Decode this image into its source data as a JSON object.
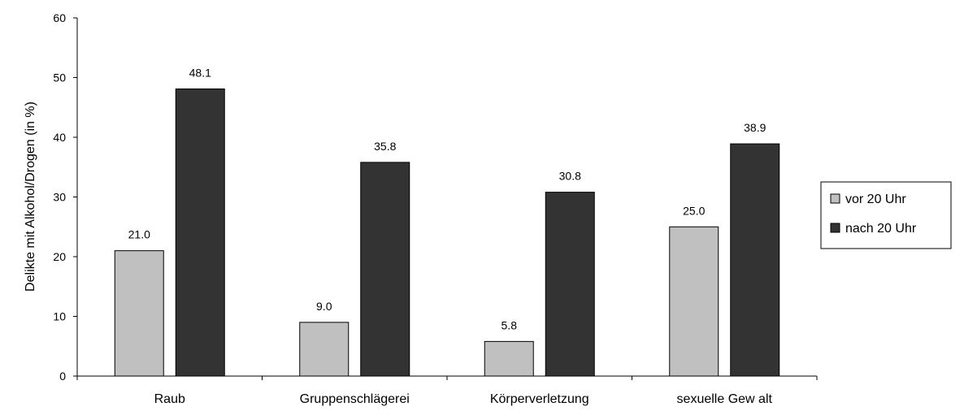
{
  "chart_data": {
    "type": "bar",
    "categories": [
      "Raub",
      "Gruppenschlägerei",
      "Körperverletzung",
      "sexuelle Gew alt"
    ],
    "series": [
      {
        "name": "vor 20 Uhr",
        "values": [
          21.0,
          9.0,
          5.8,
          25.0
        ],
        "color": "#c0c0c0"
      },
      {
        "name": "nach 20 Uhr",
        "values": [
          48.1,
          35.8,
          30.8,
          38.9
        ],
        "color": "#333333"
      }
    ],
    "data_labels": [
      [
        "21.0",
        "9.0",
        "5.8",
        "25.0"
      ],
      [
        "48.1",
        "35.8",
        "30.8",
        "38.9"
      ]
    ],
    "ylabel": "Delikte mit Alkohol/Drogen (in %)",
    "xlabel": "",
    "ylim": [
      0,
      60
    ],
    "yticks": [
      0,
      10,
      20,
      30,
      40,
      50,
      60
    ],
    "grid": false,
    "legend_position": "right"
  }
}
